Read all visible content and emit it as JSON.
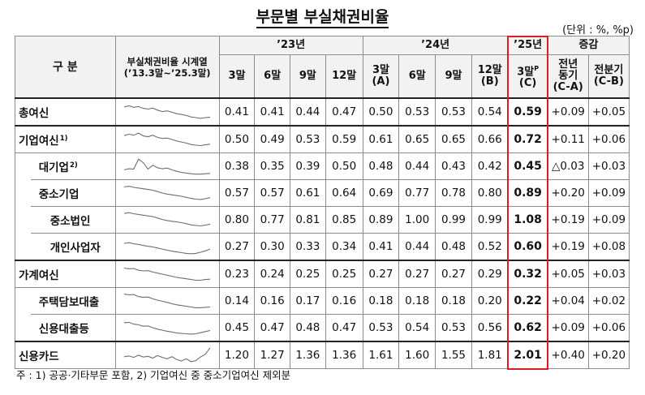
{
  "title": "부문별 부실채권비율",
  "unit": "(단위 : %, %p)",
  "header": {
    "section_label": "구 분",
    "trend_label_line1": "부실채권비율 시계열",
    "trend_label_line2": "(’13.3말~’25.3말)",
    "year_23": "’23년",
    "year_24": "’24년",
    "year_25": "’25년",
    "change_label": "증감",
    "cols_23": [
      "3말",
      "6말",
      "9말",
      "12말"
    ],
    "col_24_3_line1": "3말",
    "col_24_3_line2": "(A)",
    "col_24_6": "6말",
    "col_24_9": "9말",
    "col_24_12_line1": "12말",
    "col_24_12_line2": "(B)",
    "col_25_line1": "3말",
    "col_25_sup": "P",
    "col_25_line2": "(C)",
    "chg_yoy_line1": "전년",
    "chg_yoy_line2": "동기",
    "chg_yoy_line3": "(C-A)",
    "chg_qoq_line1": "전분기",
    "chg_qoq_line2": "(C-B)"
  },
  "rows": [
    {
      "label": "총여신",
      "sup": "",
      "values": [
        "0.41",
        "0.41",
        "0.44",
        "0.47",
        "0.50",
        "0.53",
        "0.53",
        "0.54",
        "0.59"
      ],
      "chg": [
        "+0.09",
        "+0.05"
      ],
      "spark": [
        0.78,
        0.84,
        0.76,
        0.8,
        0.7,
        0.66,
        0.72,
        0.6,
        0.52,
        0.56,
        0.48,
        0.4,
        0.36,
        0.3,
        0.22,
        0.18,
        0.14,
        0.18,
        0.2
      ]
    },
    {
      "label": "기업여신",
      "sup": "1)",
      "values": [
        "0.50",
        "0.49",
        "0.53",
        "0.59",
        "0.61",
        "0.65",
        "0.65",
        "0.66",
        "0.72"
      ],
      "chg": [
        "+0.11",
        "+0.06"
      ],
      "spark": [
        0.72,
        0.8,
        0.74,
        0.86,
        0.7,
        0.66,
        0.74,
        0.62,
        0.56,
        0.58,
        0.5,
        0.42,
        0.36,
        0.3,
        0.22,
        0.18,
        0.16,
        0.2,
        0.24
      ]
    },
    {
      "label": "대기업",
      "sup": "2)",
      "values": [
        "0.38",
        "0.35",
        "0.39",
        "0.50",
        "0.48",
        "0.44",
        "0.43",
        "0.42",
        "0.45"
      ],
      "chg": [
        "△0.03",
        "+0.03"
      ],
      "spark": [
        0.3,
        0.36,
        0.34,
        0.9,
        0.7,
        0.34,
        0.56,
        0.42,
        0.36,
        0.4,
        0.3,
        0.22,
        0.16,
        0.12,
        0.08,
        0.06,
        0.06,
        0.08,
        0.1
      ]
    },
    {
      "label": "중소기업",
      "sup": "",
      "values": [
        "0.57",
        "0.57",
        "0.61",
        "0.64",
        "0.69",
        "0.77",
        "0.78",
        "0.80",
        "0.89"
      ],
      "chg": [
        "+0.20",
        "+0.09"
      ],
      "spark": [
        0.84,
        0.88,
        0.82,
        0.78,
        0.74,
        0.7,
        0.66,
        0.58,
        0.5,
        0.44,
        0.4,
        0.36,
        0.32,
        0.26,
        0.2,
        0.16,
        0.14,
        0.18,
        0.24
      ]
    },
    {
      "label": "중소법인",
      "sup": "",
      "values": [
        "0.80",
        "0.77",
        "0.81",
        "0.85",
        "0.89",
        "1.00",
        "0.99",
        "0.99",
        "1.08"
      ],
      "chg": [
        "+0.19",
        "+0.09"
      ],
      "spark": [
        0.86,
        0.9,
        0.84,
        0.8,
        0.76,
        0.72,
        0.68,
        0.6,
        0.52,
        0.46,
        0.42,
        0.38,
        0.34,
        0.28,
        0.22,
        0.18,
        0.16,
        0.2,
        0.26
      ]
    },
    {
      "label": "개인사업자",
      "sup": "",
      "values": [
        "0.27",
        "0.30",
        "0.33",
        "0.34",
        "0.41",
        "0.44",
        "0.48",
        "0.52",
        "0.60"
      ],
      "chg": [
        "+0.19",
        "+0.08"
      ],
      "spark": [
        0.68,
        0.72,
        0.66,
        0.62,
        0.56,
        0.52,
        0.48,
        0.42,
        0.36,
        0.3,
        0.24,
        0.2,
        0.16,
        0.12,
        0.1,
        0.12,
        0.18,
        0.26,
        0.36
      ]
    },
    {
      "label": "가계여신",
      "sup": "",
      "values": [
        "0.23",
        "0.24",
        "0.25",
        "0.25",
        "0.27",
        "0.27",
        "0.27",
        "0.29",
        "0.32"
      ],
      "chg": [
        "+0.05",
        "+0.03"
      ],
      "spark": [
        0.84,
        0.8,
        0.82,
        0.72,
        0.68,
        0.7,
        0.62,
        0.56,
        0.5,
        0.44,
        0.38,
        0.32,
        0.28,
        0.24,
        0.2,
        0.16,
        0.16,
        0.2,
        0.22
      ]
    },
    {
      "label": "주택담보대출",
      "sup": "",
      "values": [
        "0.14",
        "0.16",
        "0.17",
        "0.16",
        "0.18",
        "0.18",
        "0.18",
        "0.20",
        "0.22"
      ],
      "chg": [
        "+0.04",
        "+0.02"
      ],
      "spark": [
        0.88,
        0.84,
        0.86,
        0.74,
        0.7,
        0.72,
        0.62,
        0.54,
        0.48,
        0.42,
        0.34,
        0.28,
        0.24,
        0.2,
        0.16,
        0.12,
        0.12,
        0.14,
        0.16
      ]
    },
    {
      "label": "신용대출등",
      "sup": "",
      "values": [
        "0.45",
        "0.47",
        "0.48",
        "0.47",
        "0.53",
        "0.54",
        "0.53",
        "0.56",
        "0.62"
      ],
      "chg": [
        "+0.09",
        "+0.06"
      ],
      "spark": [
        0.78,
        0.8,
        0.7,
        0.66,
        0.58,
        0.6,
        0.5,
        0.42,
        0.36,
        0.3,
        0.26,
        0.2,
        0.18,
        0.16,
        0.14,
        0.16,
        0.22,
        0.28,
        0.34
      ]
    },
    {
      "label": "신용카드",
      "sup": "",
      "values": [
        "1.20",
        "1.27",
        "1.36",
        "1.36",
        "1.61",
        "1.60",
        "1.55",
        "1.81",
        "2.01"
      ],
      "chg": [
        "+0.40",
        "+0.20"
      ],
      "spark": [
        0.42,
        0.46,
        0.38,
        0.5,
        0.4,
        0.44,
        0.34,
        0.48,
        0.38,
        0.3,
        0.42,
        0.26,
        0.18,
        0.3,
        0.14,
        0.2,
        0.4,
        0.56,
        0.92
      ]
    }
  ],
  "footnote": "주 : 1) 공공·기타부문 포함,  2) 기업여신 중 중소기업여신 제외분",
  "colors": {
    "highlight_box": "#e01b1b",
    "sparkline": "#6e6e6e",
    "header_bg": "#f2f2f2"
  }
}
